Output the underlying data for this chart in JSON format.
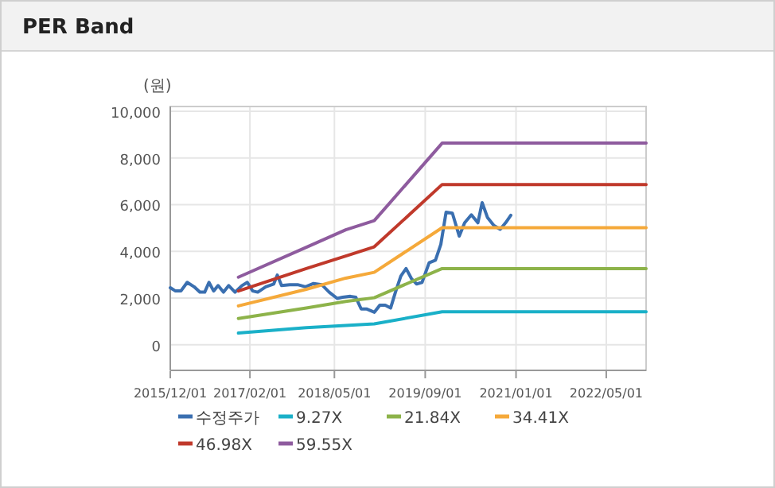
{
  "chart_data": {
    "type": "line",
    "title": "PER Band",
    "ylabel": "(원)",
    "xlim": [
      "2015-12-01",
      "2022-12-01"
    ],
    "xticks": [
      {
        "value": "2015-12-01",
        "label": "2015/12/01"
      },
      {
        "value": "2017-02-01",
        "label": "2017/02/01"
      },
      {
        "value": "2018-05-01",
        "label": "2018/05/01"
      },
      {
        "value": "2019-09-01",
        "label": "2019/09/01"
      },
      {
        "value": "2021-01-01",
        "label": "2021/01/01"
      },
      {
        "value": "2022-05-01",
        "label": "2022/05/01"
      }
    ],
    "ylim": [
      -1100,
      10200
    ],
    "yticks": [
      0,
      {
        "value": 2000,
        "label": "2,000"
      },
      {
        "value": 4000,
        "label": "4,000"
      },
      {
        "value": 6000,
        "label": "6,000"
      },
      {
        "value": 8000,
        "label": "8,000"
      },
      {
        "value": 10000,
        "label": "10,000"
      }
    ],
    "grid": true,
    "legend": "bottom",
    "series": [
      {
        "name": "수정주가",
        "color": "#3a6fb0",
        "x": [
          "2015-12-01",
          "2015-12-29",
          "2016-01-27",
          "2016-03-01",
          "2016-04-07",
          "2016-05-08",
          "2016-06-03",
          "2016-06-26",
          "2016-07-21",
          "2016-08-14",
          "2016-09-12",
          "2016-10-10",
          "2016-11-13",
          "2016-12-20",
          "2017-01-18",
          "2017-02-16",
          "2017-03-15",
          "2017-04-27",
          "2017-06-09",
          "2017-06-28",
          "2017-07-21",
          "2017-09-03",
          "2017-10-15",
          "2017-11-27",
          "2018-01-09",
          "2018-02-22",
          "2018-04-03",
          "2018-05-16",
          "2018-06-14",
          "2018-07-26",
          "2018-08-24",
          "2018-09-22",
          "2018-10-20",
          "2018-12-02",
          "2018-12-31",
          "2019-01-29",
          "2019-02-27",
          "2019-03-25",
          "2019-04-23",
          "2019-05-21",
          "2019-06-19",
          "2019-07-17",
          "2019-08-15",
          "2019-09-22",
          "2019-10-26",
          "2019-11-24",
          "2019-12-22",
          "2020-01-25",
          "2020-03-02",
          "2020-03-31",
          "2020-05-06",
          "2020-06-10",
          "2020-07-03",
          "2020-08-01",
          "2020-09-04",
          "2020-10-08",
          "2020-11-06",
          "2020-12-04"
        ],
        "values": [
          2440,
          2300,
          2300,
          2670,
          2480,
          2250,
          2250,
          2670,
          2300,
          2530,
          2250,
          2530,
          2250,
          2530,
          2670,
          2300,
          2250,
          2480,
          2600,
          2980,
          2530,
          2570,
          2570,
          2480,
          2620,
          2570,
          2250,
          1980,
          2030,
          2070,
          2030,
          1530,
          1530,
          1390,
          1690,
          1690,
          1570,
          2250,
          2940,
          3260,
          2830,
          2600,
          2670,
          3510,
          3620,
          4300,
          5670,
          5630,
          4650,
          5220,
          5560,
          5220,
          6080,
          5440,
          5100,
          4940,
          5220,
          5540
        ]
      },
      {
        "name": "9.27X",
        "color": "#1ab0c8",
        "x": [
          "2016-12-01",
          "2017-12-01",
          "2018-07-01",
          "2018-12-01",
          "2019-12-01",
          "2022-12-01"
        ],
        "values": [
          500,
          730,
          820,
          890,
          1410,
          1410
        ]
      },
      {
        "name": "21.84X",
        "color": "#8db34a",
        "x": [
          "2016-12-01",
          "2017-12-01",
          "2018-07-01",
          "2018-12-01",
          "2019-12-01",
          "2022-12-01"
        ],
        "values": [
          1120,
          1570,
          1850,
          2010,
          3260,
          3260
        ]
      },
      {
        "name": "34.41X",
        "color": "#f5a93a",
        "x": [
          "2016-12-01",
          "2017-12-01",
          "2018-07-01",
          "2018-12-01",
          "2019-12-01",
          "2022-12-01"
        ],
        "values": [
          1660,
          2370,
          2850,
          3100,
          5010,
          5010
        ]
      },
      {
        "name": "46.98X",
        "color": "#c0392b",
        "x": [
          "2016-12-01",
          "2017-12-01",
          "2018-07-01",
          "2018-12-01",
          "2019-12-01",
          "2022-12-01"
        ],
        "values": [
          2300,
          3260,
          3800,
          4190,
          6860,
          6860
        ]
      },
      {
        "name": "59.55X",
        "color": "#8e5b9e",
        "x": [
          "2016-12-01",
          "2017-12-01",
          "2018-07-01",
          "2018-12-01",
          "2019-12-01",
          "2022-12-01"
        ],
        "values": [
          2890,
          4170,
          4920,
          5310,
          8630,
          8630
        ]
      }
    ]
  }
}
